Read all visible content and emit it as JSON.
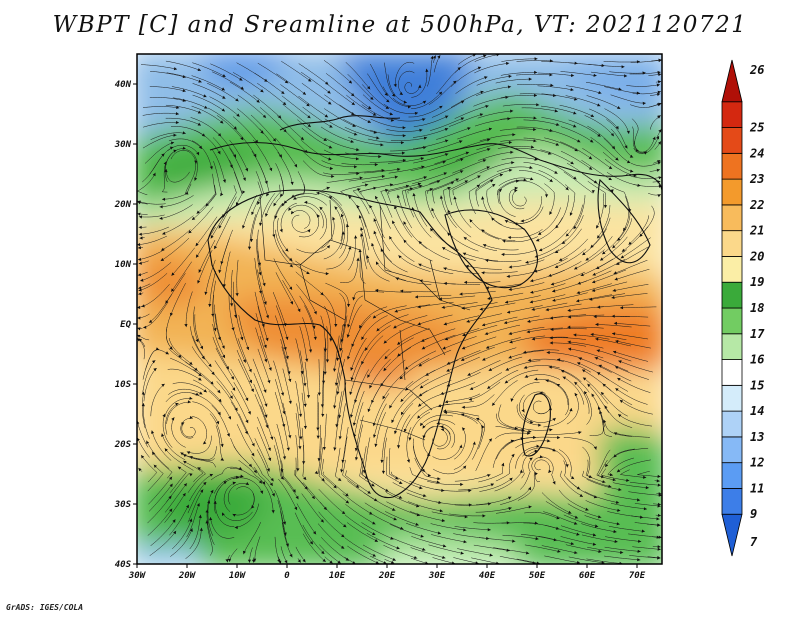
{
  "title": "WBPT [C] and Sreamline at 500hPa, VT: 2021120721",
  "credit": "GrADS: IGES/COLA",
  "map": {
    "projection": "latlon",
    "lon_range": [
      -30,
      75
    ],
    "lat_range": [
      -40,
      45
    ],
    "features": [
      "coastlines",
      "country-borders",
      "streamlines",
      "shaded-wbpt"
    ],
    "x_ticks": [
      {
        "value": -30,
        "label": "30W"
      },
      {
        "value": -20,
        "label": "20W"
      },
      {
        "value": -10,
        "label": "10W"
      },
      {
        "value": 0,
        "label": "0"
      },
      {
        "value": 10,
        "label": "10E"
      },
      {
        "value": 20,
        "label": "20E"
      },
      {
        "value": 30,
        "label": "30E"
      },
      {
        "value": 40,
        "label": "40E"
      },
      {
        "value": 50,
        "label": "50E"
      },
      {
        "value": 60,
        "label": "60E"
      },
      {
        "value": 70,
        "label": "70E"
      }
    ],
    "y_ticks": [
      {
        "value": 40,
        "label": "40N"
      },
      {
        "value": 30,
        "label": "30N"
      },
      {
        "value": 20,
        "label": "20N"
      },
      {
        "value": 10,
        "label": "10N"
      },
      {
        "value": 0,
        "label": "EQ"
      },
      {
        "value": -10,
        "label": "10S"
      },
      {
        "value": -20,
        "label": "20S"
      },
      {
        "value": -30,
        "label": "30S"
      },
      {
        "value": -40,
        "label": "40S"
      }
    ]
  },
  "colorbar": {
    "labels": [
      "7",
      "9",
      "11",
      "12",
      "13",
      "14",
      "15",
      "16",
      "17",
      "18",
      "19",
      "20",
      "21",
      "22",
      "23",
      "24",
      "25",
      "26"
    ],
    "colors": [
      "#1f5fd6",
      "#3d7ee8",
      "#5b9cf3",
      "#86b9f6",
      "#aed2f7",
      "#d4ecfa",
      "#ffffff",
      "#b6e8a6",
      "#72cc62",
      "#3aaa3a",
      "#fbeea6",
      "#fbd88a",
      "#f8bb5c",
      "#f39a2c",
      "#ee7320",
      "#e44a18",
      "#d42810",
      "#b01008"
    ]
  }
}
